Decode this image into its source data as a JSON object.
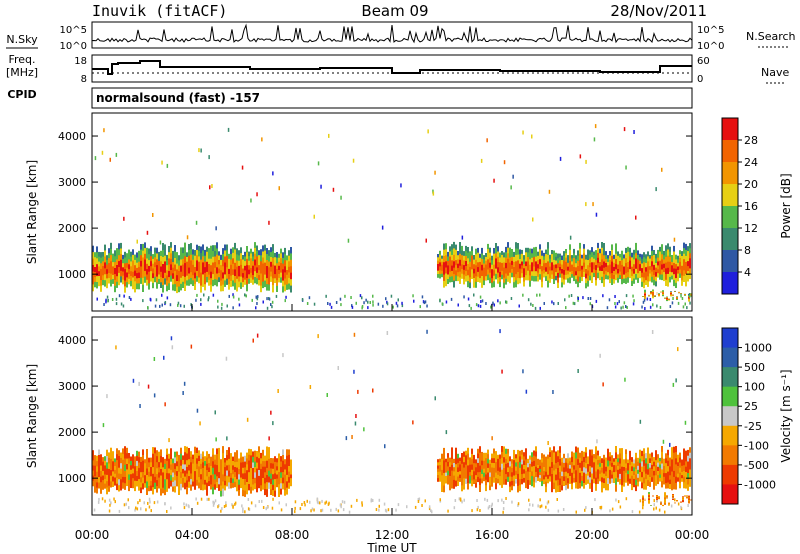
{
  "header": {
    "station": "Inuvik (fitACF)",
    "beam": "Beam 09",
    "date": "28/Nov/2011"
  },
  "sidebar_labels": {
    "nsky": "N.Sky",
    "freq": "Freq.",
    "mhz": "[MHz]",
    "cpid": "CPID",
    "nsearch": "N.Search",
    "nave": "Nave"
  },
  "noise_axis": {
    "top": "10^5",
    "bottom": "10^0"
  },
  "freq_axis": {
    "top": "18",
    "bottom": "8"
  },
  "nave_axis": {
    "top": "60",
    "bottom": "0"
  },
  "cpid_text": "normalsound (fast) -157",
  "colors": {
    "power": [
      "#1f1fdc",
      "#2f58a4",
      "#3a8a6e",
      "#56b84a",
      "#e7cf14",
      "#f29500",
      "#f26400",
      "#e61010"
    ],
    "velocity": [
      "#1f3fd0",
      "#2c5ea8",
      "#3a8a6e",
      "#4fc23c",
      "#c8c8c8",
      "#f5a800",
      "#f27a00",
      "#ee3a00",
      "#e61010"
    ]
  },
  "chart_data": [
    {
      "type": "heatmap",
      "name": "power",
      "ylabel": "Slant Range [km]",
      "yticks": [
        "1000",
        "2000",
        "3000",
        "4000"
      ],
      "ylim": [
        200,
        4500
      ],
      "xticks": [
        "00:00",
        "04:00",
        "08:00",
        "12:00",
        "16:00",
        "20:00",
        "00:00"
      ],
      "xlim_hours": [
        0,
        24
      ],
      "colorbar_label": "Power [dB]",
      "colorbar_ticks": [
        "4",
        "8",
        "12",
        "16",
        "20",
        "24",
        "28"
      ],
      "regions": [
        {
          "t0": 0.0,
          "t1": 8.0,
          "r0": 600,
          "r1": 1700,
          "peak_db": 30
        },
        {
          "t0": 13.8,
          "t1": 23.9,
          "r0": 700,
          "r1": 1700,
          "peak_db": 30
        },
        {
          "t0": 22.0,
          "t1": 24.0,
          "r0": 400,
          "r1": 700,
          "peak_db": 26
        }
      ]
    },
    {
      "type": "heatmap",
      "name": "velocity",
      "ylabel": "Slant Range [km]",
      "yticks": [
        "1000",
        "2000",
        "3000",
        "4000"
      ],
      "ylim": [
        200,
        4500
      ],
      "xticks": [
        "00:00",
        "04:00",
        "08:00",
        "12:00",
        "16:00",
        "20:00",
        "00:00"
      ],
      "xlim_hours": [
        0,
        24
      ],
      "xlabel": "Time UT",
      "colorbar_label": "Velocity [m s⁻¹]",
      "colorbar_ticks": [
        "1000",
        "500",
        "100",
        "25",
        "-25",
        "-100",
        "-500",
        "-1000"
      ],
      "regions": [
        {
          "t0": 0.0,
          "t1": 8.0,
          "r0": 600,
          "r1": 1700,
          "vel_ms": -300
        },
        {
          "t0": 13.8,
          "t1": 23.9,
          "r0": 700,
          "r1": 1700,
          "vel_ms": -300
        },
        {
          "t0": 22.0,
          "t1": 24.0,
          "r0": 400,
          "r1": 700,
          "vel_ms": -150
        }
      ]
    }
  ]
}
